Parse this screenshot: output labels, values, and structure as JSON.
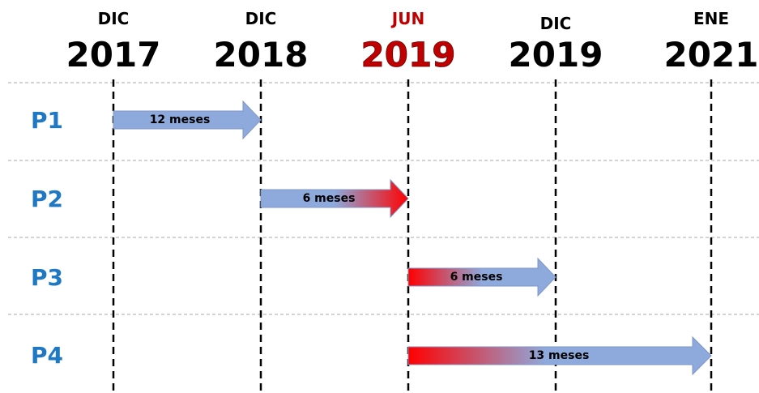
{
  "milestones": [
    {
      "month": "DIC",
      "year": "2017"
    },
    {
      "month": "DIC",
      "year": "2018"
    },
    {
      "month": "JUN",
      "year": "2019"
    },
    {
      "month": "DIC",
      "year": "2019"
    },
    {
      "month": "ENE",
      "year": "2021"
    }
  ],
  "rows": [
    {
      "label": "P1",
      "arrow": "12 meses"
    },
    {
      "label": "P2",
      "arrow": "6 meses"
    },
    {
      "label": "P3",
      "arrow": "6 meses"
    },
    {
      "label": "P4",
      "arrow": "13 meses"
    }
  ]
}
